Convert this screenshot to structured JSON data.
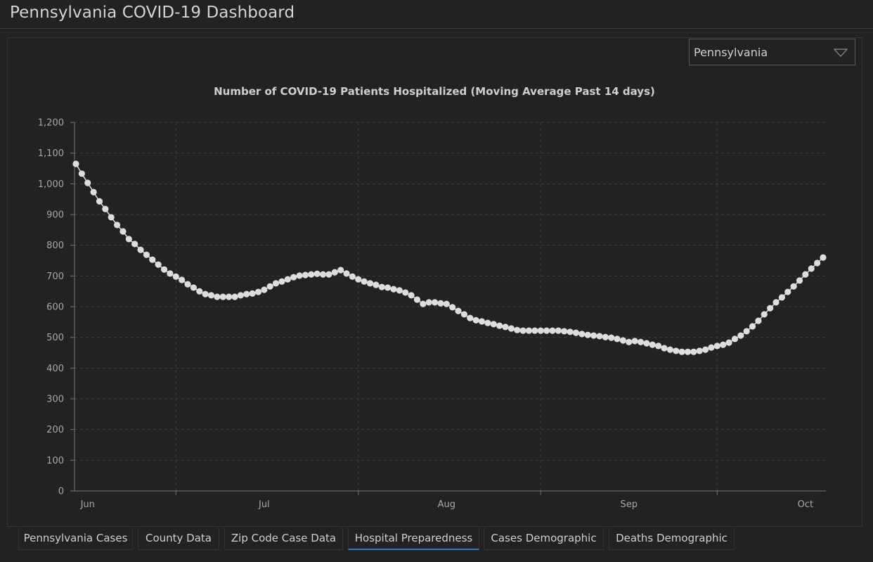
{
  "app": {
    "title": "Pennsylvania COVID-19 Dashboard"
  },
  "region_select": {
    "value": "Pennsylvania",
    "icon": "chevron-down-icon"
  },
  "tabs": [
    {
      "label": "Pennsylvania Cases",
      "active": false
    },
    {
      "label": "County Data",
      "active": false
    },
    {
      "label": "Zip Code Case Data",
      "active": false
    },
    {
      "label": "Hospital Preparedness",
      "active": true
    },
    {
      "label": "Cases Demographic",
      "active": false
    },
    {
      "label": "Deaths Demographic",
      "active": false
    }
  ],
  "colors": {
    "background": "#222222",
    "point": "#dddddd",
    "active_tab": "#2f7fc1",
    "grid": "#3d3d3d",
    "axis": "#777777"
  },
  "chart_data": {
    "type": "line",
    "title": "Number of COVID-19 Patients Hospitalized (Moving Average Past 14 days)",
    "xlabel": "",
    "ylabel": "",
    "ylim": [
      0,
      1200
    ],
    "yticks": [
      "0",
      "100",
      "200",
      "300",
      "400",
      "500",
      "600",
      "700",
      "800",
      "900",
      "1,000",
      "1,100",
      "1,200"
    ],
    "xticks": [
      "Jun",
      "Jul",
      "Aug",
      "Sep",
      "Oct"
    ],
    "grid": true,
    "markers": true,
    "x": [
      "Jun 14",
      "Jun 15",
      "Jun 16",
      "Jun 17",
      "Jun 18",
      "Jun 19",
      "Jun 20",
      "Jun 21",
      "Jun 22",
      "Jun 23",
      "Jun 24",
      "Jun 25",
      "Jun 26",
      "Jun 27",
      "Jun 28",
      "Jun 29",
      "Jun 30",
      "Jul 1",
      "Jul 2",
      "Jul 3",
      "Jul 4",
      "Jul 5",
      "Jul 6",
      "Jul 7",
      "Jul 8",
      "Jul 9",
      "Jul 10",
      "Jul 11",
      "Jul 12",
      "Jul 13",
      "Jul 14",
      "Jul 15",
      "Jul 16",
      "Jul 17",
      "Jul 18",
      "Jul 19",
      "Jul 20",
      "Jul 21",
      "Jul 22",
      "Jul 23",
      "Jul 24",
      "Jul 25",
      "Jul 26",
      "Jul 27",
      "Jul 28",
      "Jul 29",
      "Jul 30",
      "Jul 31",
      "Aug 1",
      "Aug 2",
      "Aug 3",
      "Aug 4",
      "Aug 5",
      "Aug 6",
      "Aug 7",
      "Aug 8",
      "Aug 9",
      "Aug 10",
      "Aug 11",
      "Aug 12",
      "Aug 13",
      "Aug 14",
      "Aug 15",
      "Aug 16",
      "Aug 17",
      "Aug 18",
      "Aug 19",
      "Aug 20",
      "Aug 21",
      "Aug 22",
      "Aug 23",
      "Aug 24",
      "Aug 25",
      "Aug 26",
      "Aug 27",
      "Aug 28",
      "Aug 29",
      "Aug 30",
      "Aug 31",
      "Sep 1",
      "Sep 2",
      "Sep 3",
      "Sep 4",
      "Sep 5",
      "Sep 6",
      "Sep 7",
      "Sep 8",
      "Sep 9",
      "Sep 10",
      "Sep 11",
      "Sep 12",
      "Sep 13",
      "Sep 14",
      "Sep 15",
      "Sep 16",
      "Sep 17",
      "Sep 18",
      "Sep 19",
      "Sep 20",
      "Sep 21",
      "Sep 22",
      "Sep 23",
      "Sep 24",
      "Sep 25",
      "Sep 26",
      "Sep 27",
      "Sep 28",
      "Sep 29",
      "Sep 30",
      "Oct 1",
      "Oct 2",
      "Oct 3",
      "Oct 4",
      "Oct 5",
      "Oct 6",
      "Oct 7",
      "Oct 8",
      "Oct 9",
      "Oct 10",
      "Oct 11",
      "Oct 12",
      "Oct 13",
      "Oct 14",
      "Oct 15",
      "Oct 16",
      "Oct 17",
      "Oct 18",
      "Oct 19"
    ],
    "values": [
      1065,
      1033,
      1003,
      973,
      943,
      918,
      891,
      866,
      845,
      820,
      804,
      785,
      769,
      753,
      737,
      721,
      708,
      698,
      687,
      673,
      662,
      650,
      641,
      637,
      632,
      632,
      632,
      632,
      637,
      641,
      643,
      648,
      655,
      666,
      676,
      682,
      689,
      696,
      701,
      703,
      705,
      707,
      705,
      705,
      712,
      719,
      708,
      698,
      689,
      682,
      676,
      671,
      664,
      662,
      657,
      653,
      646,
      637,
      623,
      609,
      614,
      614,
      611,
      609,
      598,
      586,
      575,
      563,
      556,
      552,
      547,
      543,
      538,
      534,
      529,
      524,
      522,
      522,
      522,
      522,
      522,
      522,
      522,
      520,
      518,
      515,
      511,
      508,
      506,
      504,
      501,
      499,
      495,
      490,
      485,
      488,
      485,
      481,
      476,
      472,
      465,
      460,
      456,
      453,
      453,
      453,
      456,
      460,
      467,
      472,
      476,
      483,
      495,
      506,
      520,
      536,
      554,
      575,
      595,
      614,
      630,
      648,
      666,
      685,
      705,
      724,
      742,
      760
    ]
  }
}
